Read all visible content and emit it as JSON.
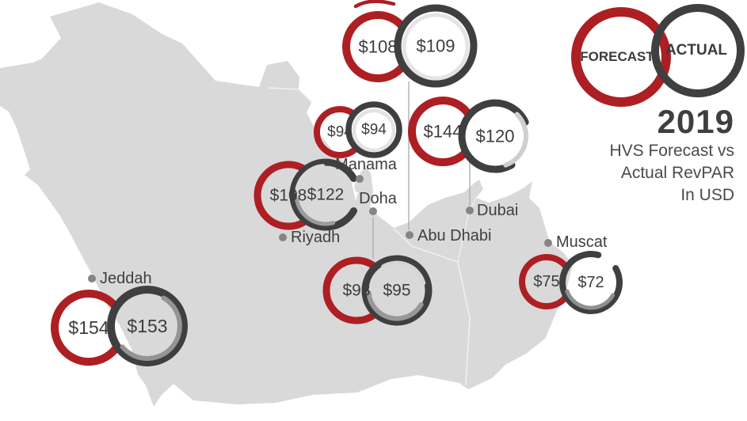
{
  "title": {
    "year": "2019",
    "line1": "HVS Forecast vs",
    "line2": "Actual RevPAR",
    "line3": "In USD"
  },
  "legend": {
    "forecast_label": "FORECAST",
    "actual_label": "ACTUAL",
    "layout": {
      "forecast_ring": [
        784,
        72,
        57,
        12
      ],
      "actual_ring": [
        881,
        64,
        54,
        10
      ]
    }
  },
  "colors": {
    "forecast": "#ad1f23",
    "actual": "#3f3f3f",
    "map": "#d9d9d9",
    "border": "#f2f2f2",
    "dot": "#858585",
    "connector": "#b3b3b3",
    "value_text": "#3d3d3d",
    "label_text": "#3f3f3f"
  },
  "cities": [
    {
      "id": "jeddah",
      "name": "Jeddah",
      "forecast_label": "$154",
      "actual_label": "$153",
      "layout": {
        "forecast": [
          112,
          414,
          43,
          10
        ],
        "actual": [
          186,
          412,
          46,
          10
        ],
        "vf": 23,
        "dot": [
          116,
          352
        ],
        "label": [
          126,
          352,
          "start"
        ],
        "highlights": [
          {
            "dr": -5,
            "w": 6,
            "color": "#949494",
            "a": [
              -140,
              60
            ]
          }
        ]
      }
    },
    {
      "id": "riyadh",
      "name": "Riyadh",
      "forecast_label": "$108",
      "actual_label": "$122",
      "layout": {
        "forecast": [
          364,
          247,
          39,
          9
        ],
        "actual": [
          411,
          246,
          41,
          9
        ],
        "vf": 21,
        "actual_arcs": [
          [
            30,
            330
          ]
        ],
        "dot": [
          357,
          300
        ],
        "label": [
          367,
          300,
          "start"
        ],
        "highlights": [
          {
            "dr": -4,
            "w": 5,
            "color": "#9a9a9a",
            "a": [
              190,
              285
            ]
          },
          {
            "dr": -4,
            "w": 4,
            "color": "#d9d9d9",
            "a": [
              95,
              175
            ]
          }
        ]
      }
    },
    {
      "id": "manama",
      "name": "Manama",
      "forecast_label": "$94",
      "actual_label": "$94",
      "layout": {
        "forecast": [
          429,
          167,
          29,
          8
        ],
        "actual": [
          472,
          164,
          32,
          7.5
        ],
        "vf": 19,
        "dot": [
          454,
          226
        ],
        "label": [
          462,
          208,
          "middle"
        ],
        "highlights": [
          {
            "dr": -7,
            "w": 4.5,
            "color": "#e3e3e3",
            "full": true
          }
        ]
      }
    },
    {
      "id": "doha",
      "name": "Doha",
      "forecast_label": "$93",
      "actual_label": "$95",
      "layout": {
        "forecast": [
          450,
          367,
          38,
          9
        ],
        "actual": [
          501,
          367,
          40,
          9
        ],
        "vf": 21,
        "dot": [
          471,
          267
        ],
        "label": [
          477,
          251,
          "middle"
        ],
        "connector": [
          471,
          274,
          327
        ],
        "highlights": [
          {
            "dr": -4.5,
            "w": 6,
            "color": "#989898",
            "a": [
              185,
              330
            ]
          },
          {
            "dr": -4.5,
            "w": 4,
            "color": "#d5d5d5",
            "a": [
              15,
              120
            ]
          }
        ]
      }
    },
    {
      "id": "abu-dhabi",
      "name": "Abu Dhabi",
      "forecast_label": "$108",
      "actual_label": "$109",
      "layout": {
        "forecast": [
          477,
          59,
          40,
          10
        ],
        "actual": [
          550,
          58,
          48,
          9
        ],
        "vf": 22,
        "dot": [
          517,
          297
        ],
        "label": [
          527,
          298,
          "start"
        ],
        "connector": [
          516,
          103,
          291
        ],
        "highlights": [
          {
            "dr": -8,
            "w": 5,
            "color": "#e4e4e4",
            "full": true
          }
        ]
      }
    },
    {
      "id": "dubai",
      "name": "Dubai",
      "forecast_label": "$144",
      "actual_label": "$120",
      "layout": {
        "forecast": [
          559,
          166,
          39,
          10
        ],
        "actual": [
          625,
          172,
          42,
          9
        ],
        "vf": 22,
        "actual_arcs": [
          [
            25,
            300
          ]
        ],
        "dot": [
          593,
          266
        ],
        "label": [
          602,
          266,
          "start"
        ],
        "connector": [
          593,
          200,
          260
        ],
        "highlights": [
          {
            "dr": -3,
            "w": 6,
            "color": "#cfcfcf",
            "a": [
              -70,
              45
            ]
          }
        ]
      }
    },
    {
      "id": "muscat",
      "name": "Muscat",
      "forecast_label": "$75",
      "actual_label": "$72",
      "layout": {
        "forecast": [
          690,
          356,
          31,
          8
        ],
        "actual": [
          746,
          357,
          36,
          8
        ],
        "vf": 20,
        "actual_arcs": [
          [
            75,
            390
          ]
        ],
        "dot": [
          692,
          307
        ],
        "label": [
          702,
          306,
          "start"
        ],
        "highlights": [
          {
            "dr": -4,
            "w": 5,
            "color": "#8f8f8f",
            "a": [
              200,
              330
            ]
          }
        ]
      }
    }
  ],
  "chart_data": {
    "type": "table",
    "title": "2019 HVS Forecast vs Actual RevPAR In USD",
    "categories": [
      "Jeddah",
      "Riyadh",
      "Manama",
      "Doha",
      "Abu Dhabi",
      "Dubai",
      "Muscat"
    ],
    "series": [
      {
        "name": "FORECAST",
        "values": [
          154,
          108,
          94,
          93,
          108,
          144,
          75
        ]
      },
      {
        "name": "ACTUAL",
        "values": [
          153,
          122,
          94,
          95,
          109,
          120,
          72
        ]
      }
    ],
    "unit": "USD",
    "legend_position": "top-right",
    "notes": "Paired forecast (red ring) vs actual (dark ring) markers placed over a map of the Arabian Peninsula"
  }
}
